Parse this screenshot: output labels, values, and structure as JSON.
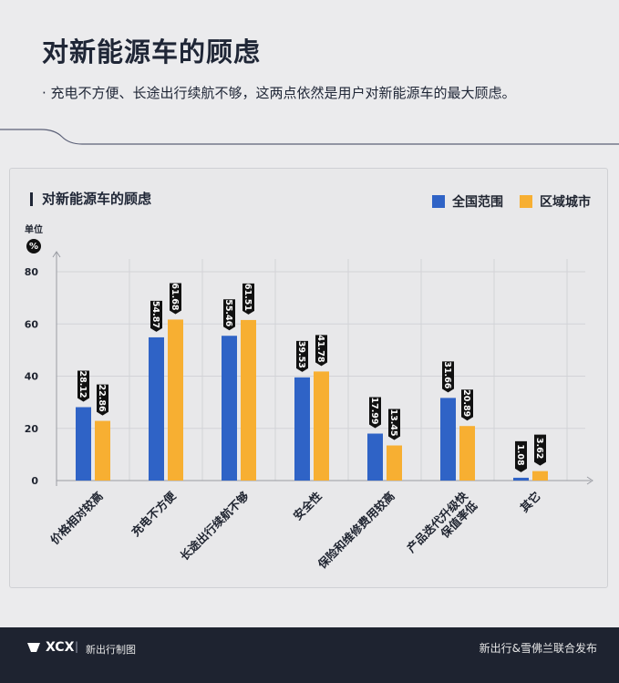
{
  "page": {
    "title": "对新能源车的顾虑",
    "subtitle": "· 充电不方便、长途出行续航不够，这两点依然是用户对新能源车的最大顾虑。"
  },
  "card": {
    "title": "对新能源车的顾虑",
    "unit_label": "单位",
    "unit_symbol": "%"
  },
  "chart_data": {
    "type": "bar",
    "title": "对新能源车的顾虑",
    "ylabel": "%",
    "ylim": [
      0,
      80
    ],
    "yticks": [
      0,
      20,
      40,
      60,
      80
    ],
    "grid": true,
    "legend_position": "top-right",
    "categories": [
      "价格相对较高",
      "充电不方便",
      "长途出行续航不够",
      "安全性",
      "保险和维修费用较高",
      "产品迭代升级快\n保值率低",
      "其它"
    ],
    "series": [
      {
        "name": "全国范围",
        "color": "#2f63c6",
        "values": [
          28.12,
          54.87,
          55.46,
          39.53,
          17.99,
          31.66,
          1.08
        ]
      },
      {
        "name": "区域城市",
        "color": "#f7af32",
        "values": [
          22.86,
          61.68,
          61.51,
          41.78,
          13.45,
          20.89,
          3.62
        ]
      }
    ]
  },
  "footer": {
    "logo": "XCX",
    "separator": "|",
    "brand": "新出行制图",
    "publisher": "新出行&雪佛兰联合发布"
  }
}
